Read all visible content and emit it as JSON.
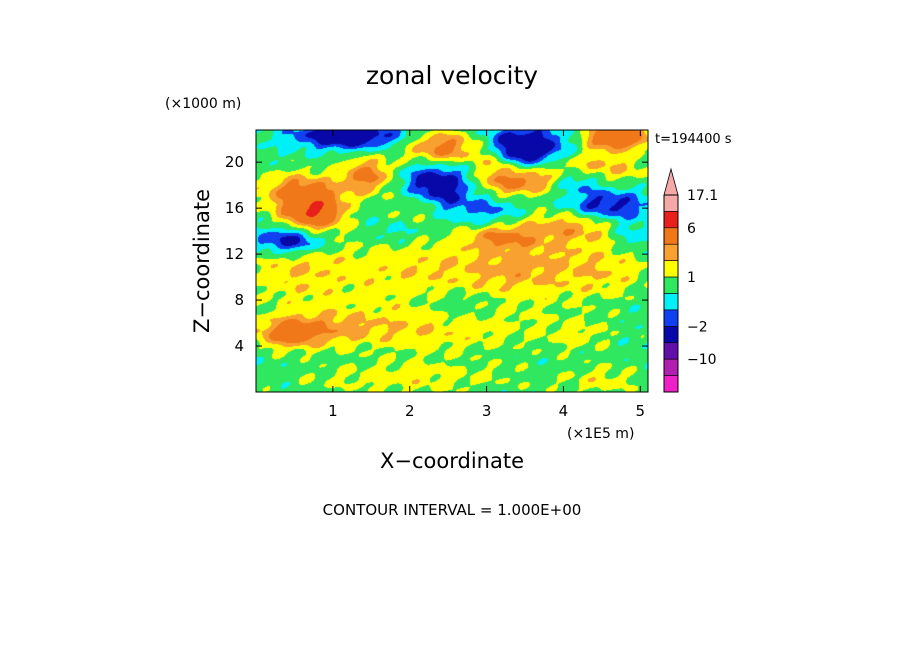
{
  "chart_data": {
    "type": "heatmap",
    "title": "zonal velocity",
    "xlabel": "X−coordinate",
    "ylabel": "Z−coordinate",
    "x_units_label": "(×1E5 m)",
    "y_units_label": "(×1000 m)",
    "time_label": "t=194400 s",
    "footer": "CONTOUR INTERVAL = 1.000E+00",
    "xlim": [
      0,
      5.1
    ],
    "ylim": [
      0,
      22.8
    ],
    "x_ticks": [
      1,
      2,
      3,
      4,
      5
    ],
    "x_tick_labels": [
      "1",
      "2",
      "3",
      "4",
      "5"
    ],
    "y_ticks": [
      4,
      8,
      12,
      16,
      20
    ],
    "y_tick_labels": [
      "4",
      "8",
      "12",
      "16",
      "20"
    ],
    "colorbar": {
      "max_label": "17.1",
      "labels": [
        {
          "value": 6,
          "text": "6"
        },
        {
          "value": 1,
          "text": "1"
        },
        {
          "value": -2,
          "text": "−2"
        },
        {
          "value": -10,
          "text": "−10"
        }
      ],
      "bands": [
        {
          "lo": 12,
          "hi": 17.1,
          "color": "#f4a8a8"
        },
        {
          "lo": 6,
          "hi": 12,
          "color": "#e8201c"
        },
        {
          "lo": 3,
          "hi": 6,
          "color": "#f07818"
        },
        {
          "lo": 2,
          "hi": 3,
          "color": "#f8a030"
        },
        {
          "lo": 1,
          "hi": 2,
          "color": "#ffff00"
        },
        {
          "lo": 0,
          "hi": 1,
          "color": "#30e860"
        },
        {
          "lo": -1,
          "hi": 0,
          "color": "#00f0f8"
        },
        {
          "lo": -2,
          "hi": -1,
          "color": "#1040f0"
        },
        {
          "lo": -5,
          "hi": -2,
          "color": "#0808a8"
        },
        {
          "lo": -10,
          "hi": -5,
          "color": "#6010a8"
        },
        {
          "lo": -15,
          "hi": -10,
          "color": "#b020b0"
        },
        {
          "lo": -20,
          "hi": -15,
          "color": "#f020c8"
        }
      ]
    },
    "field_blobs": [
      {
        "x": 0.5,
        "z": 11.0,
        "rx": 0.6,
        "rz": 4.0,
        "v": 1.4
      },
      {
        "x": 2.2,
        "z": 10.5,
        "rx": 1.5,
        "rz": 3.5,
        "v": 1.6
      },
      {
        "x": 3.6,
        "z": 11.0,
        "rx": 0.8,
        "rz": 3.0,
        "v": 1.5
      },
      {
        "x": 4.6,
        "z": 10.5,
        "rx": 0.6,
        "rz": 2.5,
        "v": 1.3
      },
      {
        "x": 2.3,
        "z": 5.5,
        "rx": 1.3,
        "rz": 2.2,
        "v": 1.6
      },
      {
        "x": 0.8,
        "z": 5.5,
        "rx": 0.7,
        "rz": 1.5,
        "v": 1.8
      },
      {
        "x": 0.4,
        "z": 5.0,
        "rx": 0.4,
        "rz": 1.2,
        "v": 2.5
      },
      {
        "x": 2.0,
        "z": 1.2,
        "rx": 1.5,
        "rz": 1.5,
        "v": 1.3
      },
      {
        "x": 4.2,
        "z": 5.0,
        "rx": 0.5,
        "rz": 1.5,
        "v": 1.0
      },
      {
        "x": 4.5,
        "z": 1.0,
        "rx": 0.5,
        "rz": 1.5,
        "v": 1.2
      },
      {
        "x": 0.75,
        "z": 15.7,
        "rx": 0.35,
        "rz": 1.6,
        "v": 5.0
      },
      {
        "x": 0.55,
        "z": 17.5,
        "rx": 0.55,
        "rz": 1.7,
        "v": 2.8
      },
      {
        "x": 1.45,
        "z": 18.8,
        "rx": 0.35,
        "rz": 1.6,
        "v": 3.2
      },
      {
        "x": 2.1,
        "z": 16.5,
        "rx": 0.3,
        "rz": 1.5,
        "v": 1.6
      },
      {
        "x": 2.45,
        "z": 21.2,
        "rx": 0.5,
        "rz": 1.5,
        "v": 3.5
      },
      {
        "x": 3.35,
        "z": 18.3,
        "rx": 0.5,
        "rz": 1.3,
        "v": 3.3
      },
      {
        "x": 4.1,
        "z": 14.5,
        "rx": 0.6,
        "rz": 1.5,
        "v": 2.2
      },
      {
        "x": 4.4,
        "z": 19.5,
        "rx": 0.7,
        "rz": 1.5,
        "v": 2.2
      },
      {
        "x": 4.7,
        "z": 22.2,
        "rx": 0.4,
        "rz": 1.0,
        "v": 5.5
      },
      {
        "x": 3.2,
        "z": 13.5,
        "rx": 0.4,
        "rz": 1.0,
        "v": 2.2
      },
      {
        "x": 3.1,
        "z": 20.2,
        "rx": 0.2,
        "rz": 1.2,
        "v": 2.0
      },
      {
        "x": 0.45,
        "z": 13.2,
        "rx": 0.45,
        "rz": 1.2,
        "v": -4.0
      },
      {
        "x": 1.2,
        "z": 22.3,
        "rx": 0.65,
        "rz": 1.1,
        "v": -4.0
      },
      {
        "x": 2.35,
        "z": 18.0,
        "rx": 0.45,
        "rz": 1.9,
        "v": -3.8
      },
      {
        "x": 3.5,
        "z": 21.3,
        "rx": 0.5,
        "rz": 1.6,
        "v": -4.5
      },
      {
        "x": 3.0,
        "z": 15.8,
        "rx": 0.45,
        "rz": 1.3,
        "v": -1.6
      },
      {
        "x": 4.55,
        "z": 16.2,
        "rx": 0.55,
        "rz": 1.4,
        "v": -2.8
      },
      {
        "x": 4.2,
        "z": 18.5,
        "rx": 0.3,
        "rz": 1.0,
        "v": -2.0
      },
      {
        "x": 2.6,
        "z": 7.5,
        "rx": 0.55,
        "rz": 1.6,
        "v": -1.2
      },
      {
        "x": 1.8,
        "z": 13.8,
        "rx": 0.4,
        "rz": 1.0,
        "v": -1.0
      },
      {
        "x": 4.9,
        "z": 13.5,
        "rx": 0.25,
        "rz": 1.2,
        "v": -1.2
      }
    ]
  }
}
